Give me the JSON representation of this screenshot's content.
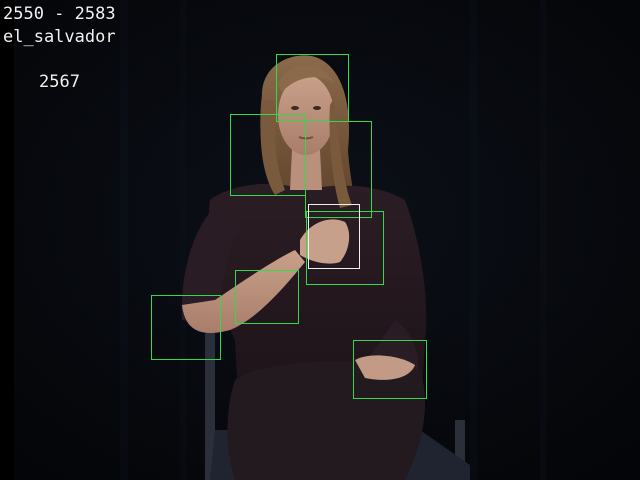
{
  "overlay": {
    "frame_range": "2550 - 2583",
    "sign_label": "el_salvador",
    "current_frame": "2567"
  },
  "colors": {
    "detection_box": "#33d94a",
    "highlight_box": "#f0f0f0",
    "background": "#05070a"
  },
  "scene": {
    "description_icon": "person-signing-image"
  }
}
